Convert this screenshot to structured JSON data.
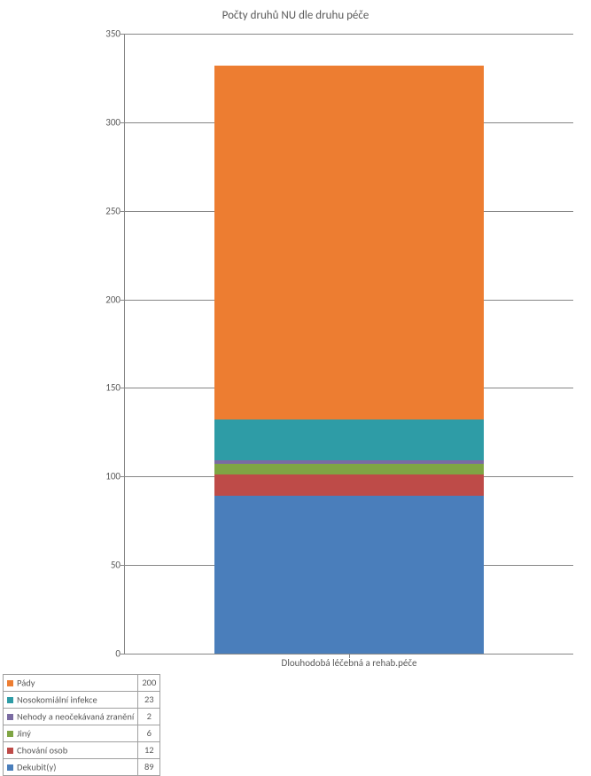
{
  "chart": {
    "type": "stacked-bar",
    "title": "Počty druhů NU dle druhu péče",
    "title_fontsize": 13,
    "background_color": "#ffffff",
    "grid_color": "#868686",
    "text_color": "#595959",
    "font_family": "Calibri, Arial, sans-serif",
    "label_fontsize": 11,
    "ylim": [
      0,
      350
    ],
    "ytick_step": 50,
    "yticks": [
      0,
      50,
      100,
      150,
      200,
      250,
      300,
      350
    ],
    "categories": [
      "Dlouhodobá léčebná a rehab.péče"
    ],
    "bar_width": 0.6,
    "series": [
      {
        "name": "Pády",
        "color": "#ed7d31",
        "values": [
          200
        ]
      },
      {
        "name": "Nosokomiální infekce",
        "color": "#2e9ca6",
        "values": [
          23
        ]
      },
      {
        "name": "Nehody a neočekávaná zranění",
        "color": "#7a6ba2",
        "values": [
          2
        ]
      },
      {
        "name": "Jiný",
        "color": "#7fa544",
        "values": [
          6
        ]
      },
      {
        "name": "Chování osob",
        "color": "#be4b48",
        "values": [
          12
        ]
      },
      {
        "name": "Dekubit(y)",
        "color": "#4a7ebb",
        "values": [
          89
        ]
      }
    ]
  }
}
